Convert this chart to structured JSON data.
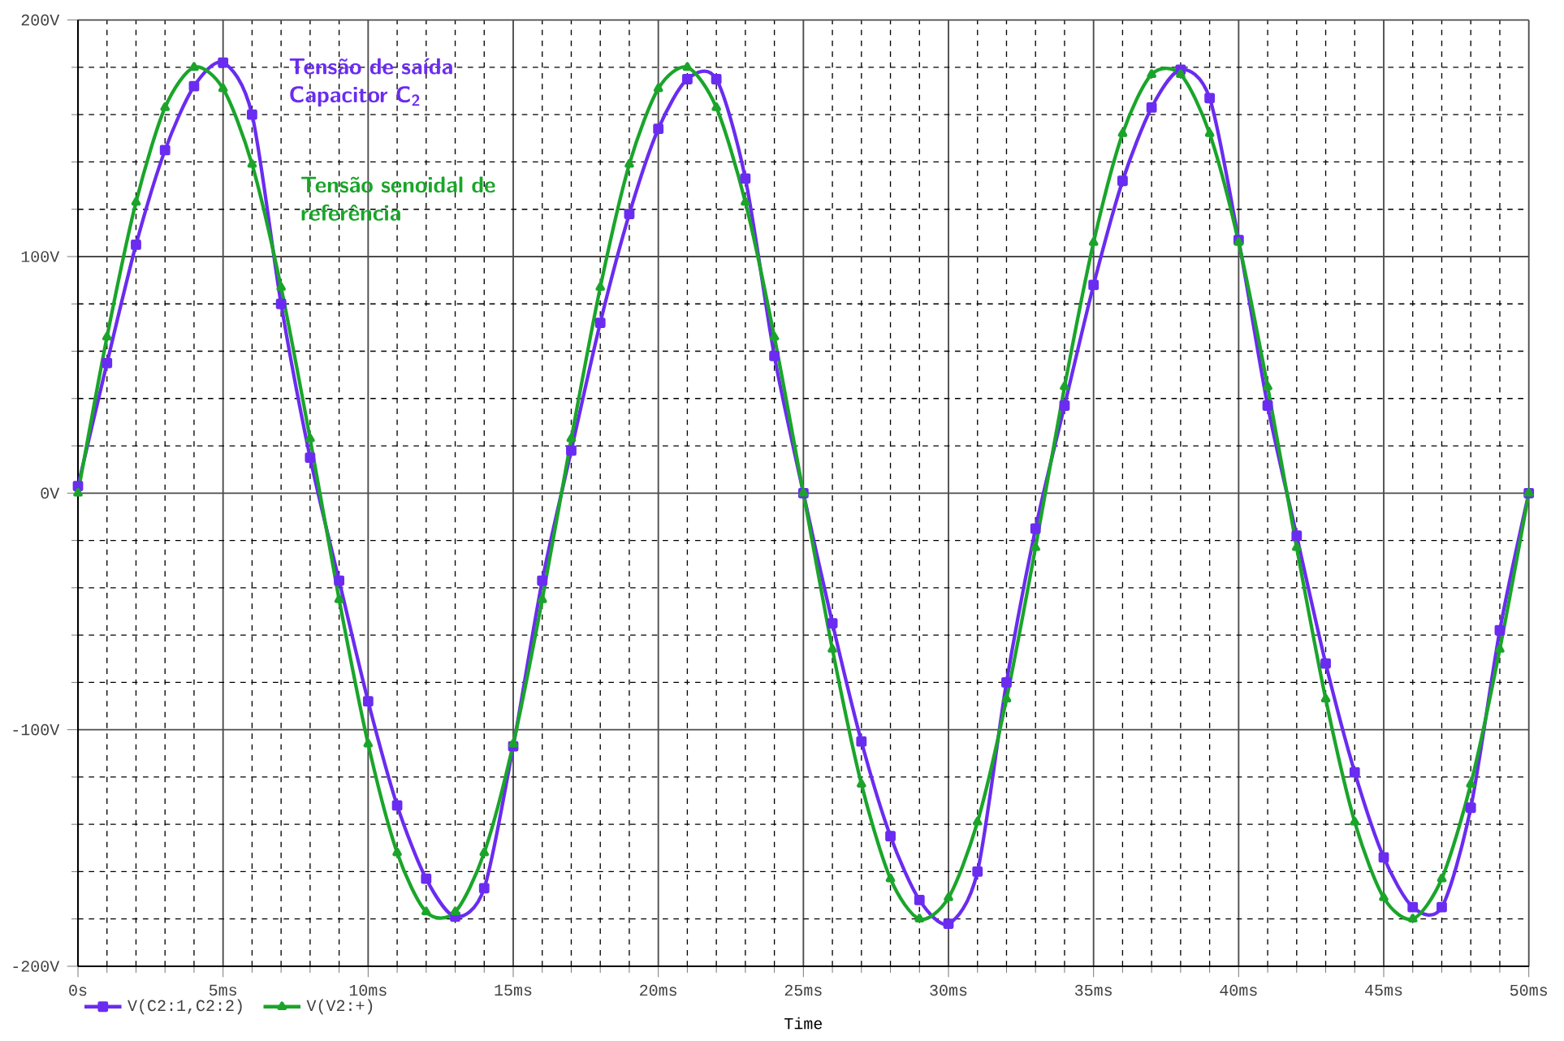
{
  "chart_data": {
    "type": "line",
    "xlabel": "Time",
    "annotations": [
      "Tensão de saída Capacitor C$_{2}$",
      "Tensão senoidal de referência"
    ],
    "x": [
      0,
      1,
      2,
      3,
      4,
      5,
      6,
      7,
      8,
      9,
      10,
      11,
      12,
      13,
      14,
      15,
      16,
      17,
      18,
      19,
      20,
      21,
      22,
      23,
      24,
      25,
      26,
      27,
      28,
      29,
      30,
      31,
      32,
      33,
      34,
      35,
      36,
      37,
      38,
      39,
      40,
      41,
      42,
      43,
      44,
      45,
      46,
      47,
      48,
      49,
      50
    ],
    "series": [
      {
        "name": "V(C2:1,C2:2)",
        "color": "#6a2cf0",
        "marker": "square",
        "values": [
          3,
          55,
          105,
          145,
          172,
          182,
          160,
          80,
          15,
          -37,
          -88,
          -132,
          -163,
          -179,
          -167,
          -107,
          -37,
          18,
          72,
          118,
          154,
          175,
          175,
          133,
          58,
          0,
          -55,
          -105,
          -145,
          -172,
          -182,
          -160,
          -80,
          -15,
          37,
          88,
          132,
          163,
          179,
          167,
          107,
          37,
          -18,
          -72,
          -118,
          -154,
          -175,
          -175,
          -133,
          -58,
          0
        ]
      },
      {
        "name": "V(V2:+)",
        "color": "#1aa52a",
        "marker": "triangle",
        "values": [
          0,
          66,
          123,
          163,
          180,
          171,
          139,
          87,
          23,
          -45,
          -106,
          -152,
          -177,
          -177,
          -152,
          -106,
          -45,
          23,
          87,
          139,
          171,
          180,
          163,
          123,
          66,
          0,
          -66,
          -123,
          -163,
          -180,
          -171,
          -139,
          -87,
          -23,
          45,
          106,
          152,
          177,
          177,
          152,
          106,
          45,
          -23,
          -87,
          -139,
          -171,
          -180,
          -163,
          -123,
          -66,
          0
        ]
      }
    ],
    "xlim": [
      0,
      50
    ],
    "ylim": [
      -200,
      200
    ],
    "xticks": [
      {
        "value": 0,
        "label": "0s"
      },
      {
        "value": 5,
        "label": "5ms"
      },
      {
        "value": 10,
        "label": "10ms"
      },
      {
        "value": 15,
        "label": "15ms"
      },
      {
        "value": 20,
        "label": "20ms"
      },
      {
        "value": 25,
        "label": "25ms"
      },
      {
        "value": 30,
        "label": "30ms"
      },
      {
        "value": 35,
        "label": "35ms"
      },
      {
        "value": 40,
        "label": "40ms"
      },
      {
        "value": 45,
        "label": "45ms"
      },
      {
        "value": 50,
        "label": "50ms"
      }
    ],
    "yticks": [
      {
        "value": -200,
        "label": "-200V"
      },
      {
        "value": -100,
        "label": "-100V"
      },
      {
        "value": 0,
        "label": "0V"
      },
      {
        "value": 100,
        "label": "100V"
      },
      {
        "value": 200,
        "label": "200V"
      }
    ],
    "grid": true,
    "legend": "bottom left"
  }
}
